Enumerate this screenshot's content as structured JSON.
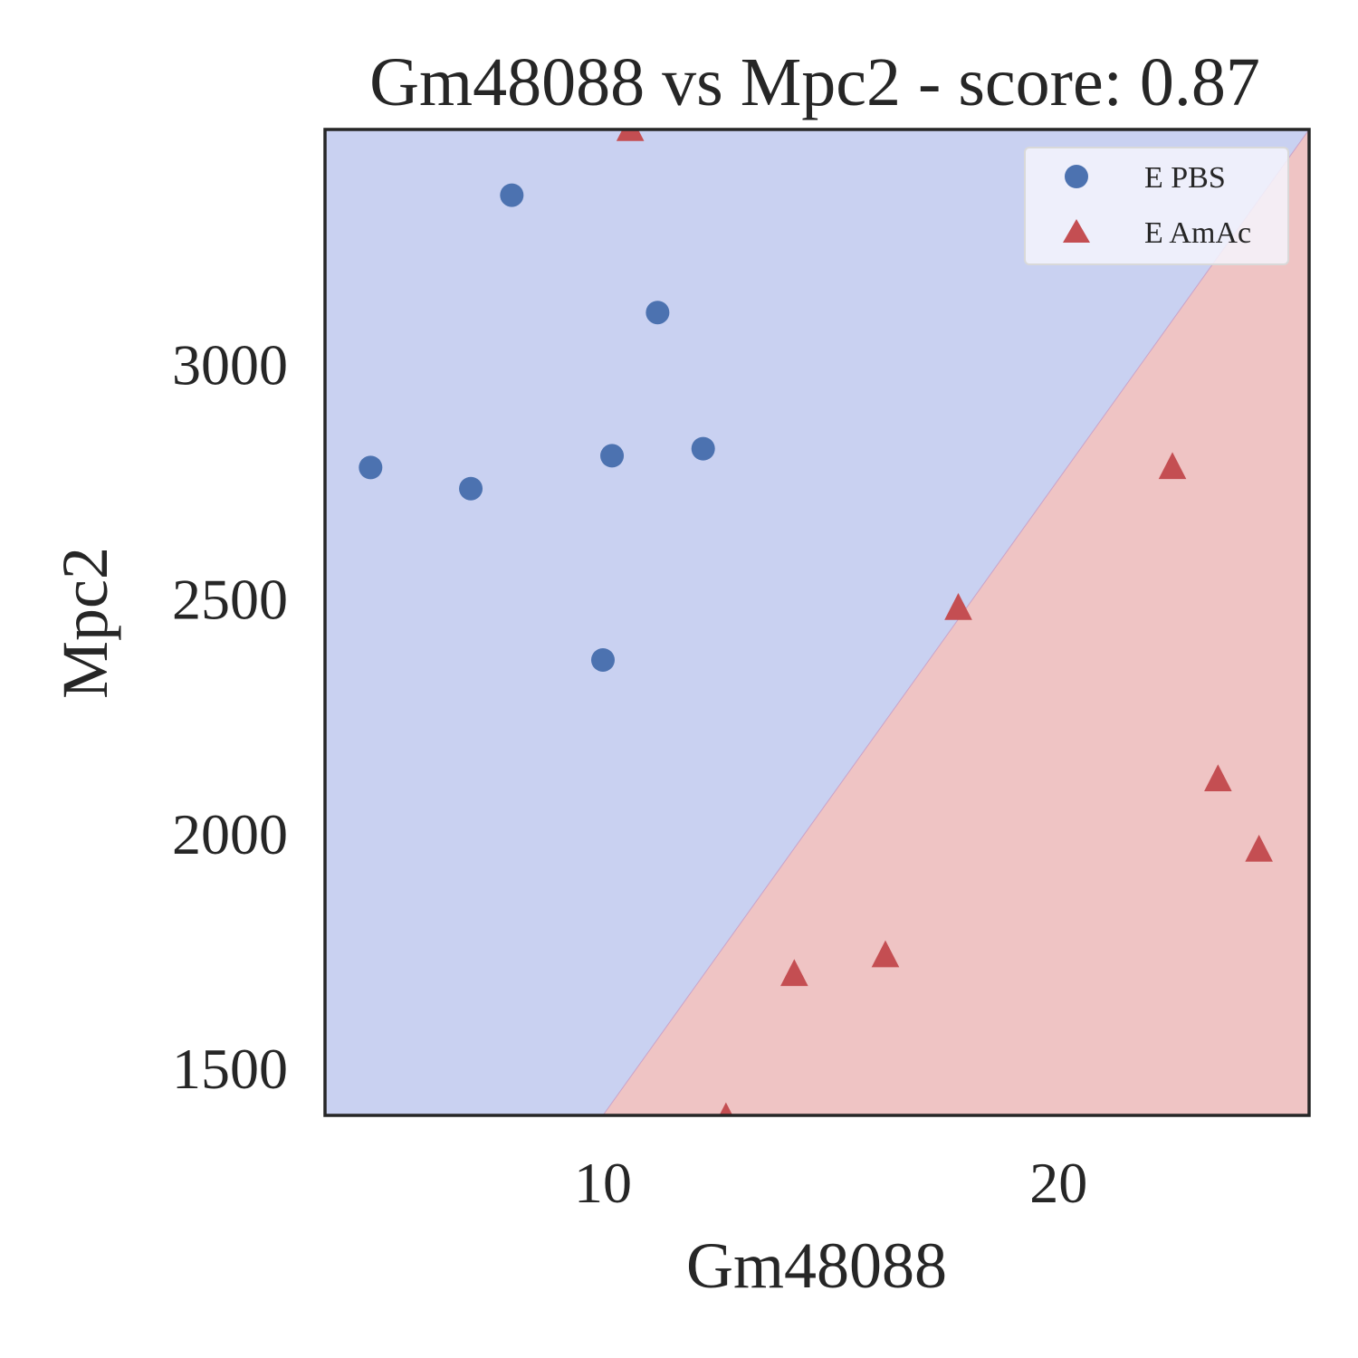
{
  "chart_data": {
    "type": "scatter",
    "title": "Gm48088 vs Mpc2 - score: 0.87",
    "xlabel": "Gm48088",
    "ylabel": "Mpc2",
    "xlim": [
      3.9,
      25.5
    ],
    "ylim": [
      1400,
      3500
    ],
    "xticks": [
      10,
      20
    ],
    "yticks": [
      1500,
      2000,
      2500,
      3000
    ],
    "grid": false,
    "legend_position": "top-right",
    "decision_boundary": {
      "points": [
        [
          10.0,
          1400
        ],
        [
          25.5,
          3500
        ]
      ]
    },
    "regions": {
      "upper_left_color": "#c9d1f1",
      "lower_right_color": "#efc4c4"
    },
    "series": [
      {
        "name": "E PBS",
        "marker": "circle",
        "color": "#4c72b0",
        "points": [
          [
            4.9,
            2780
          ],
          [
            7.1,
            2735
          ],
          [
            8.0,
            3360
          ],
          [
            10.0,
            2370
          ],
          [
            10.2,
            2805
          ],
          [
            11.2,
            3110
          ],
          [
            12.2,
            2820
          ]
        ]
      },
      {
        "name": "E AmAc",
        "marker": "triangle",
        "color": "#c44e52",
        "points": [
          [
            10.6,
            3500
          ],
          [
            12.7,
            1395
          ],
          [
            14.2,
            1700
          ],
          [
            16.2,
            1740
          ],
          [
            17.8,
            2480
          ],
          [
            22.5,
            2780
          ],
          [
            23.5,
            2115
          ],
          [
            24.4,
            1965
          ]
        ]
      }
    ]
  }
}
